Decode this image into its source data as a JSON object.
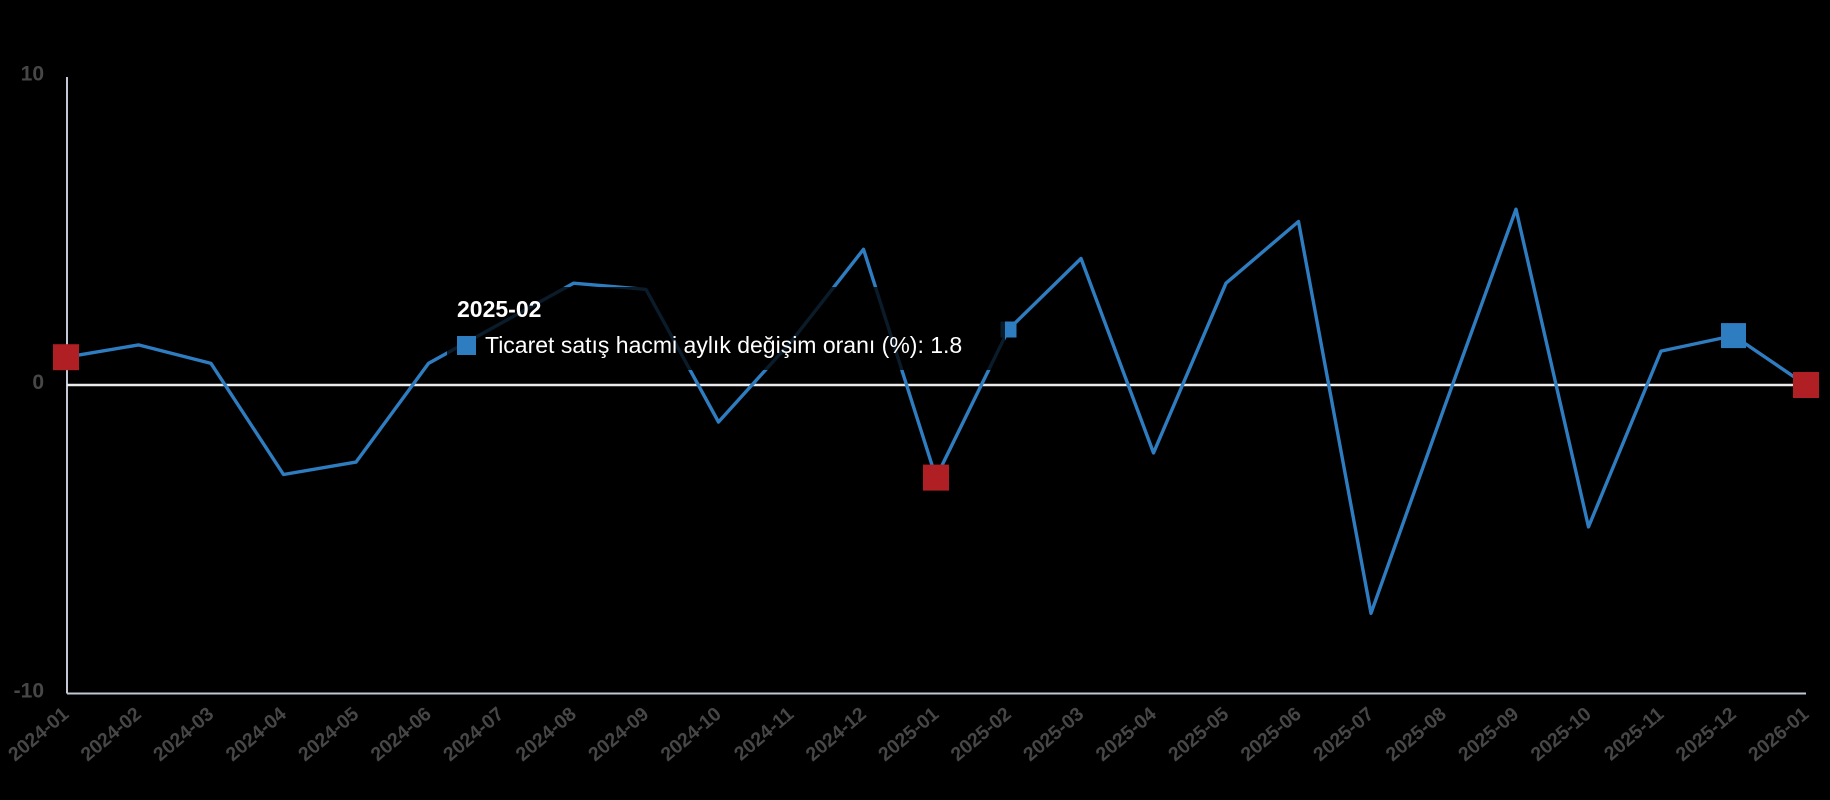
{
  "chart_data": {
    "type": "line",
    "title": "",
    "categories": [
      "2024-01",
      "2024-02",
      "2024-03",
      "2024-04",
      "2024-05",
      "2024-06",
      "2024-07",
      "2024-08",
      "2024-09",
      "2024-10",
      "2024-11",
      "2024-12",
      "2025-01",
      "2025-02",
      "2025-03",
      "2025-04",
      "2025-05",
      "2025-06",
      "2025-07",
      "2025-08",
      "2025-09",
      "2025-10",
      "2025-11",
      "2025-12",
      "2026-01"
    ],
    "series": [
      {
        "name": "Ticaret satış hacmi aylık değişim oranı (%)",
        "values": [
          0.9,
          1.3,
          0.7,
          -2.9,
          -2.5,
          0.7,
          2.0,
          3.3,
          3.1,
          -1.2,
          1.4,
          4.4,
          -3.0,
          1.8,
          4.1,
          -2.2,
          3.3,
          5.3,
          -7.4,
          -0.8,
          5.7,
          -4.6,
          1.1,
          1.6,
          0.0
        ]
      }
    ],
    "ylim": [
      -10,
      10
    ],
    "yticks": [
      10,
      0,
      -10
    ],
    "grid": "zero-line-only",
    "legend_position": "none",
    "markers": [
      {
        "month": "2024-01",
        "style": "red"
      },
      {
        "month": "2025-01",
        "style": "red"
      },
      {
        "month": "2026-01",
        "style": "red"
      },
      {
        "month": "2025-12",
        "style": "blue"
      },
      {
        "month": "2025-02",
        "style": "hover"
      }
    ],
    "colors": {
      "series_line": "#2f7dc1",
      "highlight_marker": "#b01f24",
      "zero_line": "#ebebeb",
      "axis_line": "#c2c8d4",
      "axis_label": "#474747",
      "background": "#000000",
      "tooltip_text": "#ffffff"
    }
  },
  "tooltip": {
    "title": "2025-02",
    "text": "Ticaret satış hacmi aylık değişim oranı (%): 1.8",
    "value": "1.8"
  }
}
